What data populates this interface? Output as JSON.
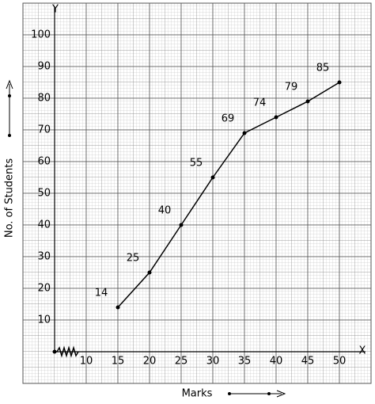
{
  "chart_data": {
    "type": "line",
    "x_label": "Marks",
    "y_label": "No. of Students",
    "x_axis_name": "X",
    "y_axis_name": "Y",
    "x": [
      15,
      20,
      25,
      30,
      35,
      40,
      45,
      50
    ],
    "series": [
      {
        "values": [
          14,
          25,
          40,
          55,
          69,
          74,
          79,
          85
        ],
        "color": "#000000"
      }
    ],
    "xlim": [
      5,
      55
    ],
    "ylim": [
      0,
      110
    ],
    "xticks": [
      10,
      15,
      20,
      25,
      30,
      35,
      40,
      45,
      50
    ],
    "yticks": [
      10,
      20,
      30,
      40,
      50,
      60,
      70,
      80,
      90,
      100
    ],
    "grid": true
  }
}
